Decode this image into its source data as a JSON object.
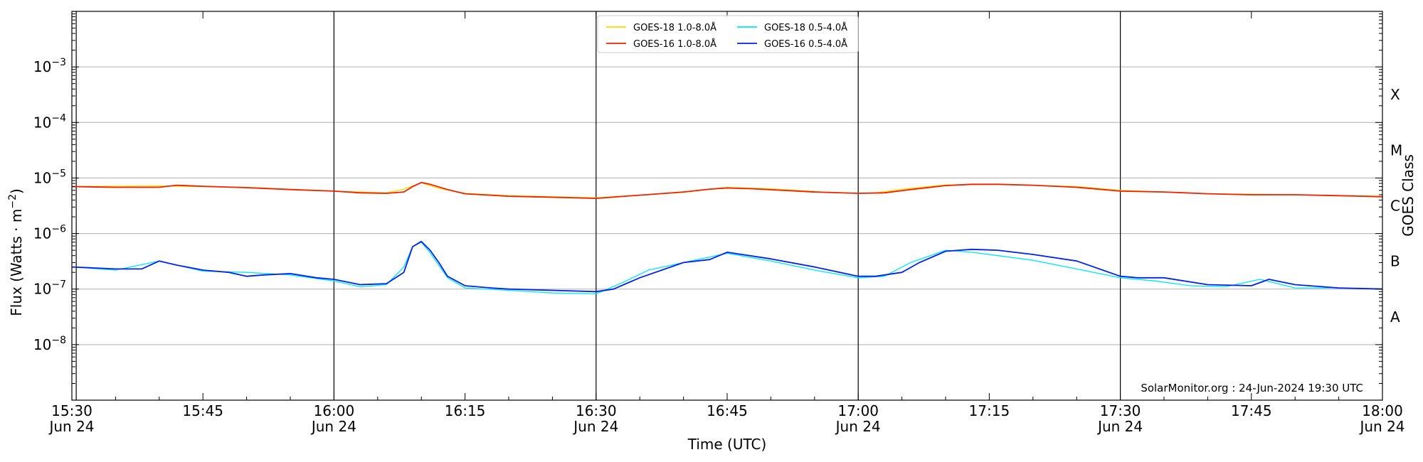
{
  "chart_data": {
    "type": "line",
    "xlabel": "Time (UTC)",
    "ylabel": "Flux (Watts · m⁻²)",
    "right_label": "GOES Class",
    "x_range_minutes": [
      0,
      150
    ],
    "ylim_log10": [
      -9,
      -2
    ],
    "y_scale": "log",
    "grid": "horizontal",
    "y_ticks": [
      {
        "exp": -3,
        "base": "10",
        "sup": "−3"
      },
      {
        "exp": -4,
        "base": "10",
        "sup": "−4"
      },
      {
        "exp": -5,
        "base": "10",
        "sup": "−5"
      },
      {
        "exp": -6,
        "base": "10",
        "sup": "−6"
      },
      {
        "exp": -7,
        "base": "10",
        "sup": "−7"
      },
      {
        "exp": -8,
        "base": "10",
        "sup": "−8"
      }
    ],
    "x_ticks": [
      {
        "t": 0,
        "time": "15:30",
        "date": "Jun 24"
      },
      {
        "t": 15,
        "time": "15:45",
        "date": ""
      },
      {
        "t": 30,
        "time": "16:00",
        "date": "Jun 24"
      },
      {
        "t": 45,
        "time": "16:15",
        "date": ""
      },
      {
        "t": 60,
        "time": "16:30",
        "date": "Jun 24"
      },
      {
        "t": 75,
        "time": "16:45",
        "date": ""
      },
      {
        "t": 90,
        "time": "17:00",
        "date": "Jun 24"
      },
      {
        "t": 105,
        "time": "17:15",
        "date": ""
      },
      {
        "t": 120,
        "time": "17:30",
        "date": "Jun 24"
      },
      {
        "t": 135,
        "time": "17:45",
        "date": ""
      },
      {
        "t": 150,
        "time": "18:00",
        "date": "Jun 24"
      }
    ],
    "vertical_markers": [
      0.5,
      30,
      60,
      90,
      120
    ],
    "goes_classes": [
      {
        "label": "X",
        "exp": -3.5
      },
      {
        "label": "M",
        "exp": -4.5
      },
      {
        "label": "C",
        "exp": -5.5
      },
      {
        "label": "B",
        "exp": -6.5
      },
      {
        "label": "A",
        "exp": -7.5
      }
    ],
    "legend_placement": "top-center",
    "credit": "SolarMonitor.org : 24-Jun-2024 19:30 UTC",
    "series": [
      {
        "name": "GOES-18 1.0-8.0Å",
        "color": "#ffd700",
        "x": [
          0,
          10,
          20,
          30,
          36,
          38,
          40,
          42,
          45,
          50,
          60,
          70,
          75,
          80,
          86,
          90,
          92,
          95,
          100,
          106,
          115,
          120,
          130,
          140,
          150
        ],
        "y": [
          7e-06,
          7.2e-06,
          6.8e-06,
          5.8e-06,
          5.4e-06,
          6.3e-06,
          8.2e-06,
          6.5e-06,
          5.3e-06,
          4.8e-06,
          4.4e-06,
          5.5e-06,
          6.8e-06,
          6.4e-06,
          5.6e-06,
          5.3e-06,
          5.4e-06,
          6.3e-06,
          7.5e-06,
          7.7e-06,
          7e-06,
          6e-06,
          5.2e-06,
          5e-06,
          4.7e-06
        ]
      },
      {
        "name": "GOES-16 1.0-8.0Å",
        "color": "#ee2200",
        "x": [
          0,
          5,
          10,
          12,
          15,
          20,
          25,
          30,
          33,
          36,
          38,
          39,
          40,
          41,
          43,
          45,
          50,
          55,
          60,
          65,
          70,
          73,
          75,
          78,
          85,
          90,
          93,
          96,
          100,
          103,
          106,
          110,
          115,
          120,
          125,
          130,
          135,
          140,
          145,
          150
        ],
        "y": [
          7e-06,
          6.8e-06,
          6.8e-06,
          7.4e-06,
          7.1e-06,
          6.7e-06,
          6.2e-06,
          5.8e-06,
          5.4e-06,
          5.3e-06,
          5.6e-06,
          7e-06,
          8.3e-06,
          7.7e-06,
          6.2e-06,
          5.2e-06,
          4.7e-06,
          4.5e-06,
          4.3e-06,
          4.9e-06,
          5.6e-06,
          6.3e-06,
          6.6e-06,
          6.4e-06,
          5.6e-06,
          5.3e-06,
          5.4e-06,
          6.2e-06,
          7.3e-06,
          7.7e-06,
          7.7e-06,
          7.4e-06,
          6.8e-06,
          5.8e-06,
          5.6e-06,
          5.2e-06,
          5e-06,
          5e-06,
          4.8e-06,
          4.6e-06
        ]
      },
      {
        "name": "GOES-18 0.5-4.0Å",
        "color": "#00e5ff",
        "x": [
          0,
          5,
          10,
          15,
          20,
          25,
          30,
          33,
          36,
          38,
          39,
          40,
          41,
          43,
          45,
          50,
          55,
          60,
          63,
          66,
          70,
          75,
          80,
          85,
          90,
          93,
          96,
          100,
          103,
          106,
          110,
          115,
          120,
          124,
          128,
          132,
          136,
          140,
          145,
          150
        ],
        "y": [
          2.5e-07,
          2.2e-07,
          3.2e-07,
          2.1e-07,
          2e-07,
          1.8e-07,
          1.4e-07,
          1.1e-07,
          1.2e-07,
          2.5e-07,
          5.8e-07,
          7e-07,
          4.5e-07,
          1.6e-07,
          1.05e-07,
          9.5e-08,
          8.5e-08,
          8.2e-08,
          1.3e-07,
          2.2e-07,
          3e-07,
          4.4e-07,
          3.2e-07,
          2.2e-07,
          1.6e-07,
          1.7e-07,
          3e-07,
          5e-07,
          4.6e-07,
          4e-07,
          3.3e-07,
          2.3e-07,
          1.6e-07,
          1.4e-07,
          1.15e-07,
          1.1e-07,
          1.5e-07,
          1.05e-07,
          1.05e-07,
          1e-07
        ]
      },
      {
        "name": "GOES-16 0.5-4.0Å",
        "color": "#0022ee",
        "x": [
          0,
          5,
          8,
          10,
          12,
          15,
          18,
          20,
          22,
          25,
          28,
          30,
          33,
          36,
          38,
          39,
          40,
          41,
          42,
          43,
          45,
          48,
          50,
          55,
          60,
          62,
          65,
          70,
          73,
          75,
          80,
          85,
          90,
          92,
          95,
          97,
          100,
          103,
          106,
          110,
          115,
          120,
          122,
          125,
          130,
          135,
          137,
          140,
          145,
          150
        ],
        "y": [
          2.5e-07,
          2.3e-07,
          2.3e-07,
          3.2e-07,
          2.7e-07,
          2.2e-07,
          2e-07,
          1.7e-07,
          1.8e-07,
          1.9e-07,
          1.6e-07,
          1.5e-07,
          1.2e-07,
          1.25e-07,
          2e-07,
          5.8e-07,
          7.2e-07,
          5e-07,
          3e-07,
          1.7e-07,
          1.15e-07,
          1.05e-07,
          1e-07,
          9.5e-08,
          9e-08,
          1e-07,
          1.6e-07,
          3e-07,
          3.4e-07,
          4.6e-07,
          3.5e-07,
          2.5e-07,
          1.7e-07,
          1.7e-07,
          2e-07,
          3e-07,
          4.8e-07,
          5.2e-07,
          5e-07,
          4.2e-07,
          3.2e-07,
          1.7e-07,
          1.6e-07,
          1.6e-07,
          1.2e-07,
          1.15e-07,
          1.5e-07,
          1.2e-07,
          1.05e-07,
          1e-07
        ]
      }
    ]
  }
}
